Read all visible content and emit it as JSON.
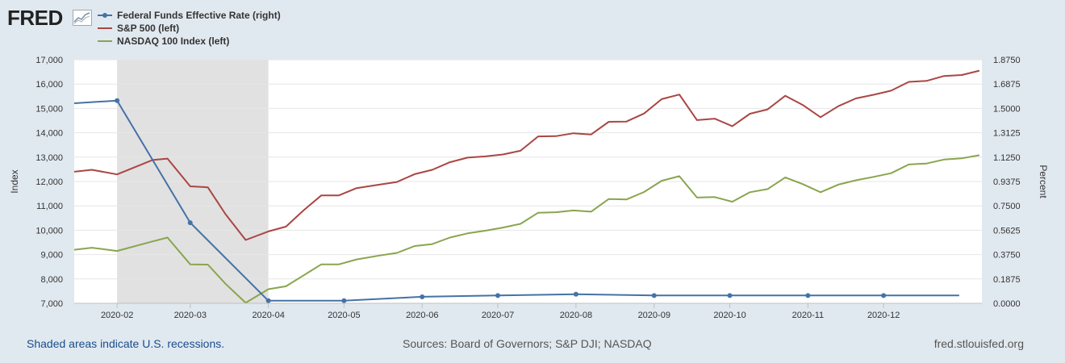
{
  "logo": {
    "text": "FRED"
  },
  "footer": {
    "note": "Shaded areas indicate U.S. recessions.",
    "sources": "Sources: Board of Governors; S&P DJI; NASDAQ",
    "site": "fred.stlouisfed.org"
  },
  "chart_data": {
    "type": "line",
    "x_ticks": [
      "2020-02",
      "2020-03",
      "2020-04",
      "2020-05",
      "2020-06",
      "2020-07",
      "2020-08",
      "2020-09",
      "2020-10",
      "2020-11",
      "2020-12"
    ],
    "y_left": {
      "label": "Index",
      "min": 7000,
      "max": 17000,
      "ticks": [
        "7,000",
        "8,000",
        "9,000",
        "10,000",
        "11,000",
        "12,000",
        "13,000",
        "14,000",
        "15,000",
        "16,000",
        "17,000"
      ]
    },
    "y_right": {
      "label": "Percent",
      "min": 0,
      "max": 1.875,
      "ticks": [
        "0.0000",
        "0.1875",
        "0.3750",
        "0.5625",
        "0.7500",
        "0.9375",
        "1.1250",
        "1.3125",
        "1.5000",
        "1.6875",
        "1.8750"
      ]
    },
    "recession": [
      "2020-02-01",
      "2020-04-01"
    ],
    "grid": true,
    "series": [
      {
        "name": "Federal Funds Effective Rate (right)",
        "axis": "right",
        "color": "#4572a7",
        "markers": true,
        "points": [
          [
            "2020-01-15",
            1.54
          ],
          [
            "2020-02-01",
            1.56
          ],
          [
            "2020-03-01",
            0.62
          ],
          [
            "2020-04-01",
            0.02
          ],
          [
            "2020-05-01",
            0.02
          ],
          [
            "2020-06-01",
            0.05
          ],
          [
            "2020-07-01",
            0.06
          ],
          [
            "2020-08-01",
            0.07
          ],
          [
            "2020-09-01",
            0.06
          ],
          [
            "2020-10-01",
            0.06
          ],
          [
            "2020-11-01",
            0.06
          ],
          [
            "2020-12-01",
            0.06
          ],
          [
            "2020-12-31",
            0.06
          ]
        ]
      },
      {
        "name": "S&P 500 (left)",
        "axis": "left",
        "color": "#aa4643",
        "markers": false,
        "points": [
          [
            "2020-01-15",
            12400
          ],
          [
            "2020-01-22",
            12480
          ],
          [
            "2020-02-01",
            12290
          ],
          [
            "2020-02-15",
            12880
          ],
          [
            "2020-02-21",
            12940
          ],
          [
            "2020-03-01",
            11800
          ],
          [
            "2020-03-08",
            11760
          ],
          [
            "2020-03-15",
            10660
          ],
          [
            "2020-03-23",
            9600
          ],
          [
            "2020-04-01",
            9950
          ],
          [
            "2020-04-08",
            10150
          ],
          [
            "2020-04-15",
            10820
          ],
          [
            "2020-04-22",
            11430
          ],
          [
            "2020-04-29",
            11430
          ],
          [
            "2020-05-06",
            11730
          ],
          [
            "2020-05-15",
            11870
          ],
          [
            "2020-05-22",
            11980
          ],
          [
            "2020-05-29",
            12300
          ],
          [
            "2020-06-05",
            12480
          ],
          [
            "2020-06-12",
            12790
          ],
          [
            "2020-06-19",
            12980
          ],
          [
            "2020-06-26",
            13030
          ],
          [
            "2020-07-03",
            13110
          ],
          [
            "2020-07-10",
            13260
          ],
          [
            "2020-07-17",
            13850
          ],
          [
            "2020-07-24",
            13860
          ],
          [
            "2020-07-31",
            13980
          ],
          [
            "2020-08-07",
            13930
          ],
          [
            "2020-08-14",
            14450
          ],
          [
            "2020-08-21",
            14460
          ],
          [
            "2020-08-28",
            14790
          ],
          [
            "2020-09-04",
            15380
          ],
          [
            "2020-09-11",
            15570
          ],
          [
            "2020-09-18",
            14520
          ],
          [
            "2020-09-25",
            14580
          ],
          [
            "2020-10-02",
            14270
          ],
          [
            "2020-10-09",
            14780
          ],
          [
            "2020-10-16",
            14960
          ],
          [
            "2020-10-23",
            15520
          ],
          [
            "2020-10-30",
            15140
          ],
          [
            "2020-11-06",
            14640
          ],
          [
            "2020-11-13",
            15090
          ],
          [
            "2020-11-20",
            15410
          ],
          [
            "2020-11-27",
            15560
          ],
          [
            "2020-12-04",
            15730
          ],
          [
            "2020-12-11",
            16090
          ],
          [
            "2020-12-18",
            16130
          ],
          [
            "2020-12-25",
            16330
          ],
          [
            "2021-01-01",
            16370
          ],
          [
            "2021-01-08",
            16550
          ]
        ]
      },
      {
        "name": "NASDAQ 100 Index (left)",
        "axis": "left",
        "color": "#89a54e",
        "markers": false,
        "points": [
          [
            "2020-01-15",
            9200
          ],
          [
            "2020-01-22",
            9280
          ],
          [
            "2020-02-01",
            9150
          ],
          [
            "2020-02-15",
            9540
          ],
          [
            "2020-02-21",
            9700
          ],
          [
            "2020-03-01",
            8600
          ],
          [
            "2020-03-08",
            8590
          ],
          [
            "2020-03-15",
            7800
          ],
          [
            "2020-03-23",
            7020
          ],
          [
            "2020-04-01",
            7580
          ],
          [
            "2020-04-08",
            7700
          ],
          [
            "2020-04-15",
            8150
          ],
          [
            "2020-04-22",
            8600
          ],
          [
            "2020-04-29",
            8600
          ],
          [
            "2020-05-06",
            8800
          ],
          [
            "2020-05-15",
            8960
          ],
          [
            "2020-05-22",
            9070
          ],
          [
            "2020-05-29",
            9350
          ],
          [
            "2020-06-05",
            9430
          ],
          [
            "2020-06-12",
            9700
          ],
          [
            "2020-06-19",
            9870
          ],
          [
            "2020-06-26",
            9980
          ],
          [
            "2020-07-03",
            10110
          ],
          [
            "2020-07-10",
            10260
          ],
          [
            "2020-07-17",
            10720
          ],
          [
            "2020-07-24",
            10740
          ],
          [
            "2020-07-31",
            10810
          ],
          [
            "2020-08-07",
            10760
          ],
          [
            "2020-08-14",
            11280
          ],
          [
            "2020-08-21",
            11260
          ],
          [
            "2020-08-28",
            11570
          ],
          [
            "2020-09-04",
            12030
          ],
          [
            "2020-09-11",
            12220
          ],
          [
            "2020-09-18",
            11340
          ],
          [
            "2020-09-25",
            11360
          ],
          [
            "2020-10-02",
            11170
          ],
          [
            "2020-10-09",
            11560
          ],
          [
            "2020-10-16",
            11690
          ],
          [
            "2020-10-23",
            12170
          ],
          [
            "2020-10-30",
            11890
          ],
          [
            "2020-11-06",
            11560
          ],
          [
            "2020-11-13",
            11870
          ],
          [
            "2020-11-20",
            12050
          ],
          [
            "2020-11-27",
            12190
          ],
          [
            "2020-12-04",
            12340
          ],
          [
            "2020-12-11",
            12700
          ],
          [
            "2020-12-18",
            12740
          ],
          [
            "2020-12-25",
            12900
          ],
          [
            "2021-01-01",
            12950
          ],
          [
            "2021-01-08",
            13080
          ]
        ]
      }
    ]
  }
}
